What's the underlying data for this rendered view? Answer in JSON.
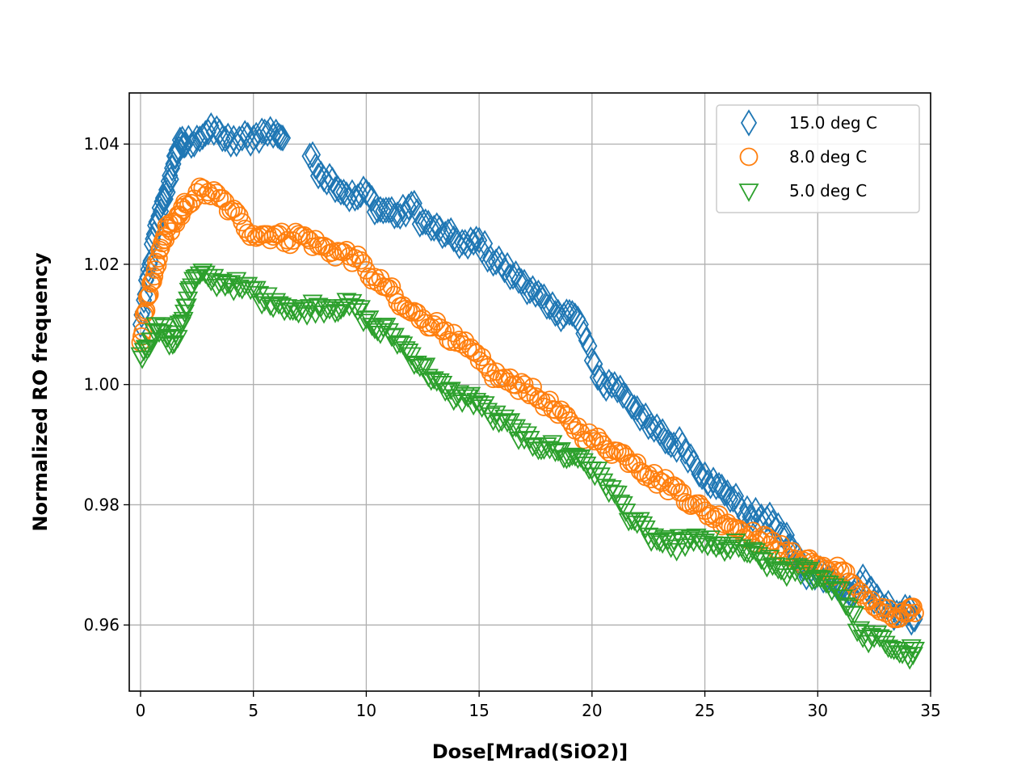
{
  "chart_data": {
    "type": "scatter",
    "title": "",
    "xlabel": "Dose[Mrad(SiO2)]",
    "ylabel": "Normalized RO frequency",
    "xlim": [
      -0.5,
      35
    ],
    "ylim": [
      0.949,
      1.0485
    ],
    "xticks": [
      0,
      5,
      10,
      15,
      20,
      25,
      30,
      35
    ],
    "xtick_labels": [
      "0",
      "5",
      "10",
      "15",
      "20",
      "25",
      "30",
      "35"
    ],
    "yticks": [
      0.96,
      0.98,
      1.0,
      1.02,
      1.04
    ],
    "ytick_labels": [
      "0.96",
      "0.98",
      "1.00",
      "1.02",
      "1.04"
    ],
    "grid": true,
    "legend_position": "top-right",
    "series": [
      {
        "name": "15.0 deg C",
        "marker": "diamond",
        "color": "#1f77b4",
        "points": [
          [
            0,
            1.01
          ],
          [
            0.2,
            1.015
          ],
          [
            0.4,
            1.02
          ],
          [
            0.6,
            1.025
          ],
          [
            0.8,
            1.028
          ],
          [
            1.0,
            1.031
          ],
          [
            1.2,
            1.032
          ],
          [
            1.4,
            1.036
          ],
          [
            1.6,
            1.039
          ],
          [
            1.8,
            1.04
          ],
          [
            2.0,
            1.04
          ],
          [
            2.5,
            1.041
          ],
          [
            3.0,
            1.042
          ],
          [
            3.5,
            1.042
          ],
          [
            4.0,
            1.04
          ],
          [
            4.5,
            1.041
          ],
          [
            5.0,
            1.041
          ],
          [
            5.5,
            1.042
          ],
          [
            6.0,
            1.042
          ],
          [
            6.3,
            1.041
          ],
          [
            7.5,
            1.038
          ],
          [
            8.0,
            1.035
          ],
          [
            8.5,
            1.034
          ],
          [
            9.0,
            1.032
          ],
          [
            9.5,
            1.031
          ],
          [
            10.0,
            1.032
          ],
          [
            10.5,
            1.029
          ],
          [
            11.0,
            1.029
          ],
          [
            11.5,
            1.028
          ],
          [
            12.0,
            1.03
          ],
          [
            12.5,
            1.027
          ],
          [
            13.0,
            1.026
          ],
          [
            13.5,
            1.025
          ],
          [
            14.0,
            1.024
          ],
          [
            14.5,
            1.023
          ],
          [
            15.0,
            1.024
          ],
          [
            15.5,
            1.021
          ],
          [
            16.0,
            1.02
          ],
          [
            16.5,
            1.018
          ],
          [
            17.0,
            1.017
          ],
          [
            17.5,
            1.015
          ],
          [
            18.0,
            1.013
          ],
          [
            18.5,
            1.012
          ],
          [
            19.0,
            1.012
          ],
          [
            19.5,
            1.01
          ],
          [
            20.0,
            1.004
          ],
          [
            20.5,
            1.0
          ],
          [
            21.0,
            1.0
          ],
          [
            21.5,
            0.998
          ],
          [
            22.0,
            0.996
          ],
          [
            22.5,
            0.993
          ],
          [
            23.0,
            0.992
          ],
          [
            23.5,
            0.99
          ],
          [
            24.0,
            0.99
          ],
          [
            24.5,
            0.987
          ],
          [
            25.0,
            0.985
          ],
          [
            25.5,
            0.983
          ],
          [
            26.0,
            0.982
          ],
          [
            26.5,
            0.98
          ],
          [
            27.0,
            0.978
          ],
          [
            27.5,
            0.978
          ],
          [
            28.0,
            0.977
          ],
          [
            28.5,
            0.975
          ],
          [
            29.0,
            0.972
          ],
          [
            29.5,
            0.968
          ],
          [
            30.0,
            0.969
          ],
          [
            30.5,
            0.968
          ],
          [
            31.0,
            0.966
          ],
          [
            31.5,
            0.965
          ],
          [
            32.0,
            0.968
          ],
          [
            32.5,
            0.964
          ],
          [
            33.0,
            0.963
          ],
          [
            33.5,
            0.962
          ],
          [
            34.0,
            0.962
          ],
          [
            34.3,
            0.961
          ]
        ]
      },
      {
        "name": "8.0 deg C",
        "marker": "circle",
        "color": "#ff7f0e",
        "points": [
          [
            0,
            1.007
          ],
          [
            0.2,
            1.012
          ],
          [
            0.4,
            1.015
          ],
          [
            0.6,
            1.018
          ],
          [
            0.8,
            1.021
          ],
          [
            1.0,
            1.024
          ],
          [
            1.2,
            1.026
          ],
          [
            1.5,
            1.027
          ],
          [
            1.8,
            1.028
          ],
          [
            2.0,
            1.03
          ],
          [
            2.5,
            1.032
          ],
          [
            3.0,
            1.032
          ],
          [
            3.5,
            1.031
          ],
          [
            4.0,
            1.029
          ],
          [
            4.5,
            1.027
          ],
          [
            5.0,
            1.025
          ],
          [
            5.5,
            1.025
          ],
          [
            6.0,
            1.025
          ],
          [
            6.5,
            1.024
          ],
          [
            7.0,
            1.025
          ],
          [
            7.5,
            1.024
          ],
          [
            8.0,
            1.023
          ],
          [
            8.5,
            1.022
          ],
          [
            9.0,
            1.022
          ],
          [
            9.5,
            1.021
          ],
          [
            10.0,
            1.019
          ],
          [
            10.5,
            1.017
          ],
          [
            11.0,
            1.016
          ],
          [
            11.5,
            1.013
          ],
          [
            12.0,
            1.012
          ],
          [
            12.5,
            1.011
          ],
          [
            13.0,
            1.01
          ],
          [
            13.5,
            1.009
          ],
          [
            14.0,
            1.007
          ],
          [
            14.5,
            1.006
          ],
          [
            15.0,
            1.004
          ],
          [
            15.5,
            1.002
          ],
          [
            16.0,
            1.001
          ],
          [
            16.5,
            1.0
          ],
          [
            17.0,
            1.0
          ],
          [
            17.5,
            0.998
          ],
          [
            18.0,
            0.997
          ],
          [
            18.5,
            0.995
          ],
          [
            19.0,
            0.994
          ],
          [
            19.5,
            0.992
          ],
          [
            20.0,
            0.991
          ],
          [
            20.5,
            0.99
          ],
          [
            21.0,
            0.989
          ],
          [
            21.5,
            0.988
          ],
          [
            22.0,
            0.987
          ],
          [
            22.5,
            0.985
          ],
          [
            23.0,
            0.984
          ],
          [
            23.5,
            0.983
          ],
          [
            24.0,
            0.982
          ],
          [
            24.5,
            0.98
          ],
          [
            25.0,
            0.979
          ],
          [
            25.5,
            0.978
          ],
          [
            26.0,
            0.977
          ],
          [
            26.5,
            0.976
          ],
          [
            27.0,
            0.975
          ],
          [
            27.5,
            0.974
          ],
          [
            28.0,
            0.974
          ],
          [
            28.5,
            0.972
          ],
          [
            29.0,
            0.971
          ],
          [
            29.5,
            0.971
          ],
          [
            30.0,
            0.97
          ],
          [
            30.5,
            0.969
          ],
          [
            31.0,
            0.969
          ],
          [
            31.5,
            0.967
          ],
          [
            32.0,
            0.965
          ],
          [
            32.5,
            0.963
          ],
          [
            33.0,
            0.962
          ],
          [
            33.5,
            0.961
          ],
          [
            34.0,
            0.962
          ],
          [
            34.3,
            0.962
          ]
        ]
      },
      {
        "name": "5.0 deg C",
        "marker": "triangle-down",
        "color": "#2ca02c",
        "points": [
          [
            0,
            1.005
          ],
          [
            0.3,
            1.006
          ],
          [
            0.6,
            1.009
          ],
          [
            0.9,
            1.01
          ],
          [
            1.2,
            1.008
          ],
          [
            1.5,
            1.007
          ],
          [
            1.8,
            1.01
          ],
          [
            2.0,
            1.013
          ],
          [
            2.2,
            1.016
          ],
          [
            2.5,
            1.018
          ],
          [
            3.0,
            1.018
          ],
          [
            3.5,
            1.017
          ],
          [
            4.0,
            1.017
          ],
          [
            4.5,
            1.016
          ],
          [
            5.0,
            1.016
          ],
          [
            5.5,
            1.014
          ],
          [
            6.0,
            1.014
          ],
          [
            6.5,
            1.013
          ],
          [
            7.0,
            1.012
          ],
          [
            7.5,
            1.013
          ],
          [
            8.0,
            1.013
          ],
          [
            8.5,
            1.013
          ],
          [
            9.0,
            1.013
          ],
          [
            9.5,
            1.013
          ],
          [
            10.0,
            1.011
          ],
          [
            10.5,
            1.009
          ],
          [
            11.0,
            1.009
          ],
          [
            11.5,
            1.007
          ],
          [
            12.0,
            1.005
          ],
          [
            12.5,
            1.003
          ],
          [
            13.0,
            1.001
          ],
          [
            13.5,
            0.999
          ],
          [
            14.0,
            0.998
          ],
          [
            14.5,
            0.998
          ],
          [
            15.0,
            0.997
          ],
          [
            15.5,
            0.995
          ],
          [
            16.0,
            0.994
          ],
          [
            16.5,
            0.993
          ],
          [
            17.0,
            0.991
          ],
          [
            17.5,
            0.99
          ],
          [
            18.0,
            0.99
          ],
          [
            18.5,
            0.989
          ],
          [
            19.0,
            0.988
          ],
          [
            19.5,
            0.988
          ],
          [
            20.0,
            0.986
          ],
          [
            20.5,
            0.984
          ],
          [
            21.0,
            0.982
          ],
          [
            21.5,
            0.979
          ],
          [
            22.0,
            0.977
          ],
          [
            22.5,
            0.975
          ],
          [
            23.0,
            0.974
          ],
          [
            23.5,
            0.973
          ],
          [
            24.0,
            0.974
          ],
          [
            24.5,
            0.974
          ],
          [
            25.0,
            0.974
          ],
          [
            25.5,
            0.973
          ],
          [
            26.0,
            0.973
          ],
          [
            26.5,
            0.973
          ],
          [
            27.0,
            0.972
          ],
          [
            27.5,
            0.971
          ],
          [
            28.0,
            0.97
          ],
          [
            28.5,
            0.969
          ],
          [
            29.0,
            0.969
          ],
          [
            29.5,
            0.969
          ],
          [
            30.0,
            0.968
          ],
          [
            30.5,
            0.967
          ],
          [
            31.0,
            0.966
          ],
          [
            31.5,
            0.962
          ],
          [
            32.0,
            0.958
          ],
          [
            32.5,
            0.958
          ],
          [
            33.0,
            0.957
          ],
          [
            33.5,
            0.956
          ],
          [
            34.0,
            0.955
          ],
          [
            34.3,
            0.956
          ]
        ]
      }
    ]
  }
}
